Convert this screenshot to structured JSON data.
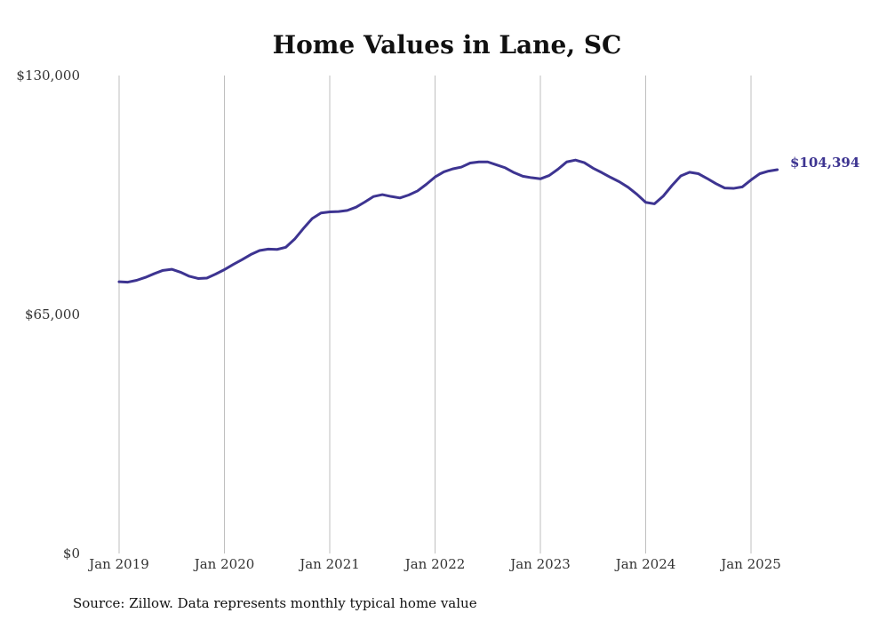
{
  "chart_data": {
    "type": "line",
    "title": "Home Values in Lane, SC",
    "source": "Source: Zillow. Data represents monthly typical home value",
    "xlabel": "",
    "ylabel": "",
    "ylim": [
      0,
      130000
    ],
    "yticks": [
      {
        "value": 0,
        "label": "$0"
      },
      {
        "value": 65000,
        "label": "$65,000"
      },
      {
        "value": 130000,
        "label": "$130,000"
      }
    ],
    "xticks": [
      {
        "date": "2019-01",
        "label": "Jan 2019"
      },
      {
        "date": "2020-01",
        "label": "Jan 2020"
      },
      {
        "date": "2021-01",
        "label": "Jan 2021"
      },
      {
        "date": "2022-01",
        "label": "Jan 2022"
      },
      {
        "date": "2023-01",
        "label": "Jan 2023"
      },
      {
        "date": "2024-01",
        "label": "Jan 2024"
      },
      {
        "date": "2025-01",
        "label": "Jan 2025"
      }
    ],
    "x_range": [
      "2019-01",
      "2025-04"
    ],
    "grid": "vertical",
    "line_color": "#3d3491",
    "end_label": "$104,394",
    "series": [
      {
        "x": [
          "2019-01",
          "2019-02",
          "2019-03",
          "2019-04",
          "2019-05",
          "2019-06",
          "2019-07",
          "2019-08",
          "2019-09",
          "2019-10",
          "2019-11",
          "2019-12",
          "2020-01",
          "2020-02",
          "2020-03",
          "2020-04",
          "2020-05",
          "2020-06",
          "2020-07",
          "2020-08",
          "2020-09",
          "2020-10",
          "2020-11",
          "2020-12",
          "2021-01",
          "2021-02",
          "2021-03",
          "2021-04",
          "2021-05",
          "2021-06",
          "2021-07",
          "2021-08",
          "2021-09",
          "2021-10",
          "2021-11",
          "2021-12",
          "2022-01",
          "2022-02",
          "2022-03",
          "2022-04",
          "2022-05",
          "2022-06",
          "2022-07",
          "2022-08",
          "2022-09",
          "2022-10",
          "2022-11",
          "2022-12",
          "2023-01",
          "2023-02",
          "2023-03",
          "2023-04",
          "2023-05",
          "2023-06",
          "2023-07",
          "2023-08",
          "2023-09",
          "2023-10",
          "2023-11",
          "2023-12",
          "2024-01",
          "2024-02",
          "2024-03",
          "2024-04",
          "2024-05",
          "2024-06",
          "2024-07",
          "2024-08",
          "2024-09",
          "2024-10",
          "2024-11",
          "2024-12",
          "2025-01",
          "2025-02",
          "2025-03",
          "2025-04"
        ],
        "values": [
          73900,
          73800,
          74300,
          75100,
          76100,
          77000,
          77300,
          76500,
          75400,
          74800,
          74900,
          76000,
          77200,
          78600,
          79900,
          81300,
          82400,
          82800,
          82700,
          83300,
          85500,
          88400,
          91100,
          92600,
          92900,
          93000,
          93300,
          94200,
          95600,
          97100,
          97600,
          97100,
          96700,
          97500,
          98600,
          100400,
          102400,
          103800,
          104600,
          105100,
          106200,
          106500,
          106500,
          105700,
          104900,
          103600,
          102600,
          102200,
          101900,
          102800,
          104500,
          106500,
          107000,
          106300,
          104800,
          103600,
          102300,
          101100,
          99600,
          97700,
          95500,
          95100,
          97200,
          100100,
          102700,
          103700,
          103300,
          102000,
          100600,
          99400,
          99300,
          99700,
          101600,
          103300,
          104000,
          104394
        ]
      }
    ]
  }
}
